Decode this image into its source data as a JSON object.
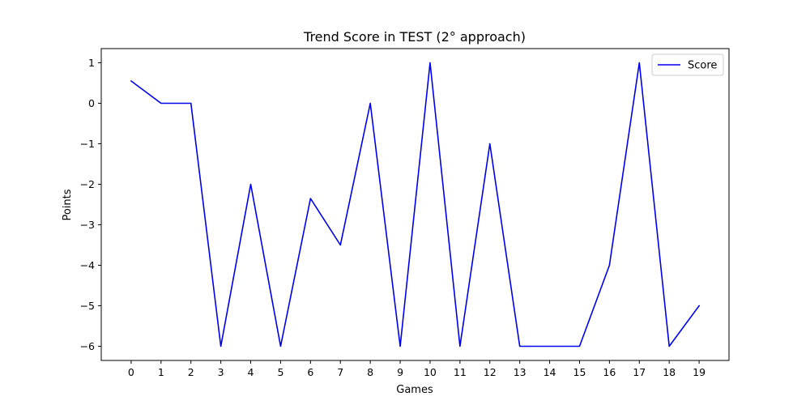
{
  "chart_data": {
    "type": "line",
    "title": "Trend Score in TEST (2° approach)",
    "xlabel": "Games",
    "ylabel": "Points",
    "x": [
      0,
      1,
      2,
      3,
      4,
      5,
      6,
      7,
      8,
      9,
      10,
      11,
      12,
      13,
      14,
      15,
      16,
      17,
      18,
      19
    ],
    "xlim": [
      -1,
      20
    ],
    "ylim": [
      -6.35,
      1.35
    ],
    "xticks": [
      0,
      1,
      2,
      3,
      4,
      5,
      6,
      7,
      8,
      9,
      10,
      11,
      12,
      13,
      14,
      15,
      16,
      17,
      18,
      19
    ],
    "yticks": [
      1,
      0,
      -1,
      -2,
      -3,
      -4,
      -5,
      -6
    ],
    "ytick_labels": [
      "1",
      "0",
      "−1",
      "−2",
      "−3",
      "−4",
      "−5",
      "−6"
    ],
    "grid": false,
    "legend_position": "top-right",
    "series": [
      {
        "name": "Score",
        "color": "#0000ee",
        "values": [
          0.55,
          0,
          0,
          -6,
          -2,
          -6,
          -2.35,
          -3.5,
          0,
          -6,
          1,
          -6,
          -1,
          -6,
          -6,
          -6,
          -4,
          1,
          -6,
          -5
        ]
      }
    ]
  }
}
